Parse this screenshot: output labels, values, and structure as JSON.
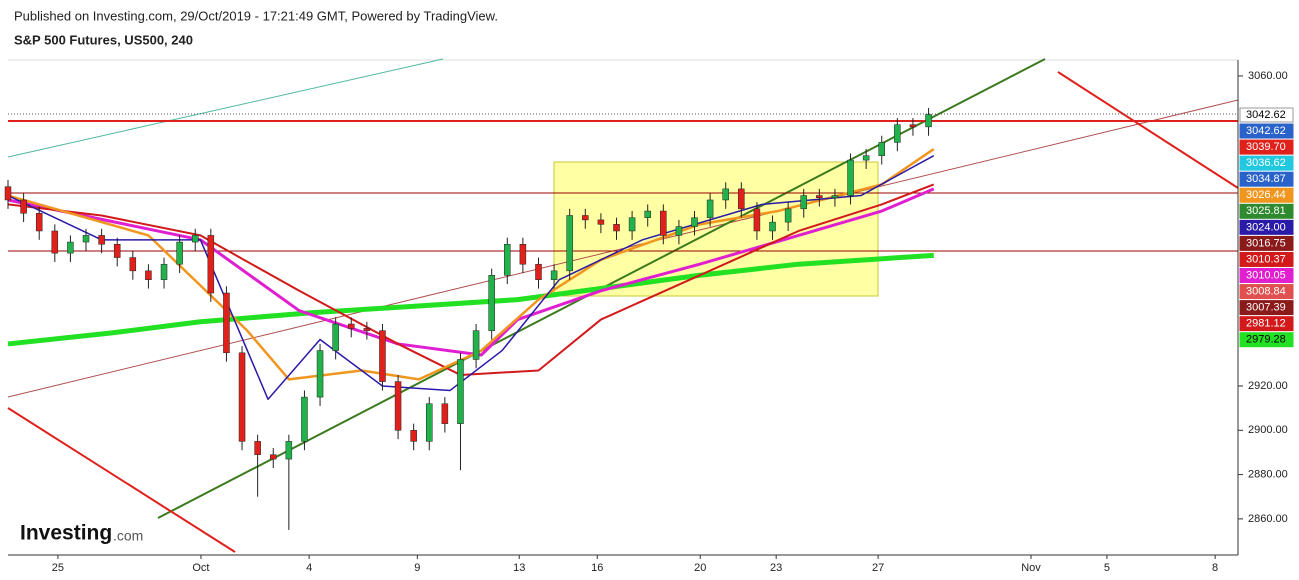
{
  "header": {
    "published": "Published on Investing.com, 29/Oct/2019 - 17:21:49 GMT, Powered by TradingView.",
    "logo": "Investing",
    "logo_suffix": ".com"
  },
  "chart_data": {
    "type": "candlestick",
    "title": "S&P 500 Futures, US500, 240",
    "xlim": [
      0,
      236.5
    ],
    "ylim": [
      2843.7,
      3067.2
    ],
    "xticks": [
      {
        "value": 9.6,
        "label": "25"
      },
      {
        "value": 37.1,
        "label": "Oct"
      },
      {
        "value": 57.9,
        "label": "4"
      },
      {
        "value": 78.7,
        "label": "9"
      },
      {
        "value": 98.3,
        "label": "13"
      },
      {
        "value": 113.3,
        "label": "16"
      },
      {
        "value": 133.1,
        "label": "20"
      },
      {
        "value": 147.7,
        "label": "23"
      },
      {
        "value": 167.3,
        "label": "27"
      },
      {
        "value": 196.7,
        "label": "Nov"
      },
      {
        "value": 211.3,
        "label": "5"
      },
      {
        "value": 232.1,
        "label": "8"
      }
    ],
    "yticks": [
      {
        "value": 2860,
        "label": "2860.00"
      },
      {
        "value": 2880,
        "label": "2880.00"
      },
      {
        "value": 2900,
        "label": "2900.00"
      },
      {
        "value": 2920,
        "label": "2920.00"
      },
      {
        "value": 3060,
        "label": "3060.00"
      }
    ],
    "up_color": "#22b24c",
    "down_color": "#e0201b",
    "candles": {
      "x": [
        0,
        3,
        6,
        9,
        12,
        15,
        18,
        21,
        24,
        27,
        30,
        33,
        36,
        39,
        42,
        45,
        48,
        51,
        54,
        57,
        60,
        63,
        66,
        69,
        72,
        75,
        78,
        81,
        84,
        87,
        90,
        93,
        96,
        99,
        102,
        105,
        108,
        111,
        114,
        117,
        120,
        123,
        126,
        129,
        132,
        135,
        138,
        141,
        144,
        147,
        150,
        153,
        156,
        159,
        162,
        165,
        168,
        171,
        174,
        177
      ],
      "open": [
        3010,
        3004,
        2998,
        2990,
        2980,
        2985,
        2988,
        2984,
        2978,
        2972,
        2968,
        2975,
        2985,
        2988,
        2962,
        2935,
        2895,
        2889,
        2887,
        2895,
        2915,
        2936,
        2948,
        2946,
        2945,
        2922,
        2900,
        2895,
        2912,
        2903,
        2932,
        2945,
        2970,
        2984,
        2975,
        2968,
        2972,
        2997,
        2995,
        2993,
        2990,
        2996,
        2999,
        2988,
        2992,
        2996,
        3004,
        3009,
        3000,
        2990,
        2994,
        3000,
        3006,
        3005,
        3006,
        3022,
        3024,
        3030,
        3038,
        3037
      ],
      "high": [
        3013,
        3007,
        3001,
        2993,
        2988,
        2991,
        2991,
        2987,
        2981,
        2975,
        2978,
        2988,
        2991,
        2991,
        2965,
        2938,
        2898,
        2892,
        2898,
        2918,
        2939,
        2951,
        2951,
        2949,
        2948,
        2925,
        2903,
        2915,
        2915,
        2935,
        2948,
        2973,
        2987,
        2987,
        2978,
        2975,
        3000,
        3000,
        2998,
        2996,
        2999,
        3002,
        3002,
        2995,
        2999,
        3007,
        3012,
        3012,
        3003,
        2997,
        3003,
        3009,
        3009,
        3009,
        3025,
        3027,
        3033,
        3041,
        3041,
        3045.5
      ],
      "low": [
        3000,
        2994,
        2986,
        2976,
        2976,
        2981,
        2980,
        2974,
        2968,
        2964,
        2964,
        2971,
        2981,
        2958,
        2931,
        2891,
        2870,
        2883,
        2855,
        2891,
        2911,
        2932,
        2942,
        2941,
        2918,
        2896,
        2891,
        2891,
        2899,
        2882,
        2928,
        2941,
        2966,
        2971,
        2964,
        2964,
        2968,
        2991,
        2989,
        2986,
        2986,
        2992,
        2984,
        2984,
        2988,
        2992,
        3000,
        2996,
        2986,
        2986,
        2990,
        2996,
        3001,
        3001,
        3002,
        3018,
        3020,
        3026,
        3033,
        3033
      ],
      "close": [
        3004,
        2998,
        2990,
        2980,
        2985,
        2988,
        2984,
        2978,
        2972,
        2968,
        2975,
        2985,
        2988,
        2962,
        2935,
        2895,
        2889,
        2887,
        2895,
        2915,
        2936,
        2948,
        2946,
        2945,
        2922,
        2900,
        2895,
        2912,
        2903,
        2932,
        2945,
        2970,
        2984,
        2975,
        2968,
        2972,
        2997,
        2995,
        2993,
        2990,
        2996,
        2999,
        2988,
        2992,
        2996,
        3004,
        3009,
        3000,
        2990,
        2994,
        3000,
        3006,
        3005,
        3006,
        3022,
        3024,
        3030,
        3038,
        3037,
        3042.62
      ]
    },
    "lines": [
      {
        "color": "#22e022",
        "width": 5,
        "x": [
          0,
          20,
          37,
          58,
          98,
          133,
          152,
          178
        ],
        "values": [
          2939,
          2944,
          2949,
          2953,
          2959,
          2970,
          2975,
          2979
        ]
      },
      {
        "color": "#e020d0",
        "width": 3,
        "x": [
          0,
          37,
          56,
          75,
          91,
          98,
          114,
          133,
          152,
          168,
          178
        ],
        "values": [
          3004,
          2986,
          2954,
          2939,
          2934,
          2950,
          2963,
          2975,
          2988,
          2999,
          3009
        ]
      },
      {
        "color": "#d21a1a",
        "width": 2,
        "x": [
          0,
          18,
          37,
          56,
          75,
          87,
          102,
          114,
          133,
          152,
          168,
          178
        ],
        "values": [
          3002,
          2997,
          2988,
          2963,
          2939,
          2925,
          2927,
          2950,
          2970,
          2990,
          3002,
          3011
        ]
      },
      {
        "color": "#f0961e",
        "width": 2.5,
        "x": [
          0,
          27,
          46,
          54,
          68,
          79,
          91,
          102,
          114,
          133,
          148,
          168,
          178
        ],
        "values": [
          3006,
          2988,
          2945,
          2923,
          2927,
          2923,
          2936,
          2959,
          2977,
          2993,
          2999,
          3011,
          3027
        ]
      },
      {
        "color": "#2a1aa8",
        "width": 1.5,
        "x": [
          0,
          18,
          37,
          50,
          60,
          72,
          85,
          95,
          106,
          122,
          145,
          164,
          178
        ],
        "values": [
          3006,
          2986,
          2986,
          2914,
          2941,
          2920,
          2918,
          2936,
          2968,
          2986,
          3002,
          3006,
          3024
        ]
      }
    ],
    "price_tags": [
      {
        "label": "3042.62",
        "color": "#ffffff",
        "text_color": "#000000"
      },
      {
        "label": "3042.62",
        "color": "#2962c8",
        "text_color": "#ffffff"
      },
      {
        "label": "3039.70",
        "color": "#e0201b",
        "text_color": "#ffffff"
      },
      {
        "label": "3036.62",
        "color": "#22c8e0",
        "text_color": "#ffffff"
      },
      {
        "label": "3034.87",
        "color": "#2962c8",
        "text_color": "#ffffff"
      },
      {
        "label": "3026.44",
        "color": "#f0961e",
        "text_color": "#ffffff"
      },
      {
        "label": "3025.81",
        "color": "#2f8a2f",
        "text_color": "#ffffff"
      },
      {
        "label": "3024.00",
        "color": "#2a1aa8",
        "text_color": "#ffffff"
      },
      {
        "label": "3016.75",
        "color": "#8b1a1a",
        "text_color": "#ffffff"
      },
      {
        "label": "3010.37",
        "color": "#d21a1a",
        "text_color": "#ffffff"
      },
      {
        "label": "3010.05",
        "color": "#e020d0",
        "text_color": "#ffffff"
      },
      {
        "label": "3008.84",
        "color": "#e05050",
        "text_color": "#ffffff"
      },
      {
        "label": "3007.39",
        "color": "#8b1a1a",
        "text_color": "#ffffff"
      },
      {
        "label": "2981.12",
        "color": "#d21a1a",
        "text_color": "#ffffff"
      },
      {
        "label": "2979.28",
        "color": "#22e022",
        "text_color": "#000000"
      }
    ]
  }
}
